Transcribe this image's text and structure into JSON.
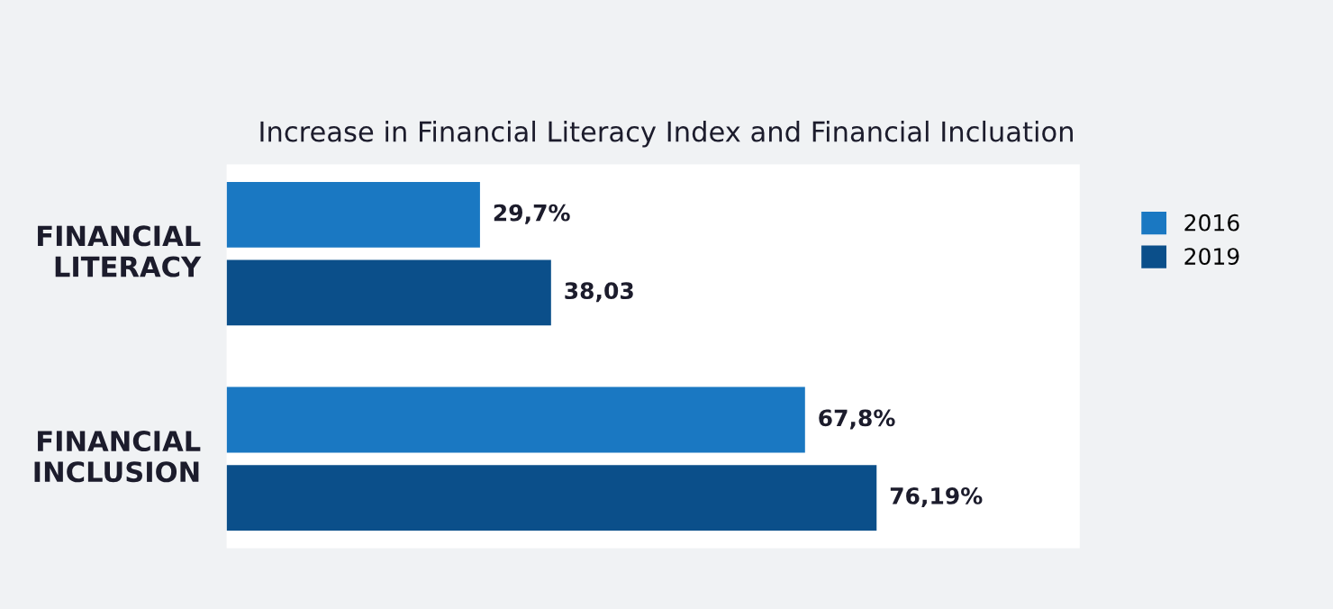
{
  "chart_data": {
    "type": "bar",
    "orientation": "horizontal",
    "title": "Increase in Financial Literacy Index and Financial Incluation",
    "categories": [
      "FINANCIAL\nLITERACY",
      "FINANCIAL\nINCLUSION"
    ],
    "series": [
      {
        "name": "2016",
        "color": "#1a78c2",
        "values": [
          29.7,
          67.8
        ],
        "value_labels": [
          "29,7%",
          "67,8%"
        ]
      },
      {
        "name": "2019",
        "color": "#0b4f8a",
        "values": [
          38.03,
          76.19
        ],
        "value_labels": [
          "38,03",
          "76,19%"
        ]
      }
    ],
    "xlim": [
      0,
      100
    ],
    "tick_labels": false,
    "grid": false,
    "legend": "right"
  }
}
